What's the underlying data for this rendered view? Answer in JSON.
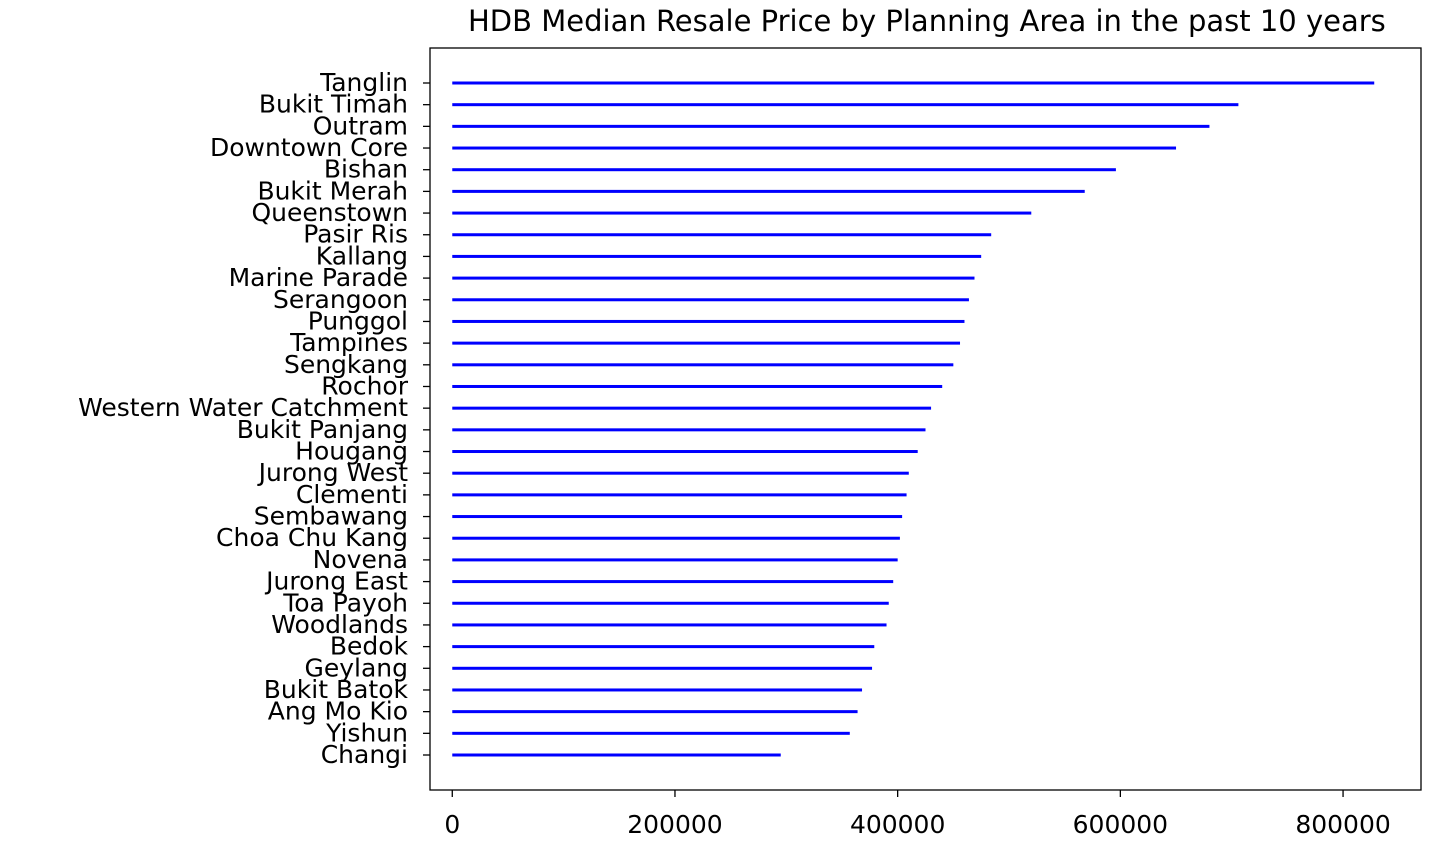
{
  "chart_data": {
    "type": "bar",
    "orientation": "horizontal",
    "title": "HDB Median Resale Price by Planning Area in the past 10 years",
    "xlabel": "",
    "ylabel": "",
    "grid": false,
    "bar_color": "#0000ff",
    "xlim": [
      -20000,
      870000
    ],
    "xticks": [
      0,
      200000,
      400000,
      600000,
      800000
    ],
    "xtick_labels": [
      "0",
      "200000",
      "400000",
      "600000",
      "800000"
    ],
    "categories": [
      "Tanglin",
      "Bukit Timah",
      "Outram",
      "Downtown Core",
      "Bishan",
      "Bukit Merah",
      "Queenstown",
      "Pasir Ris",
      "Kallang",
      "Marine Parade",
      "Serangoon",
      "Punggol",
      "Tampines",
      "Sengkang",
      "Rochor",
      "Western Water Catchment",
      "Bukit Panjang",
      "Hougang",
      "Jurong West",
      "Clementi",
      "Sembawang",
      "Choa Chu Kang",
      "Novena",
      "Jurong East",
      "Toa Payoh",
      "Woodlands",
      "Bedok",
      "Geylang",
      "Bukit Batok",
      "Ang Mo Kio",
      "Yishun",
      "Changi"
    ],
    "values": [
      828000,
      706000,
      680000,
      650000,
      596000,
      568000,
      520000,
      484000,
      475000,
      469000,
      464000,
      460000,
      456000,
      450000,
      440000,
      430000,
      425000,
      418000,
      410000,
      408000,
      404000,
      402000,
      400000,
      396000,
      392000,
      390000,
      379000,
      377000,
      368000,
      364000,
      357000,
      295000
    ]
  }
}
